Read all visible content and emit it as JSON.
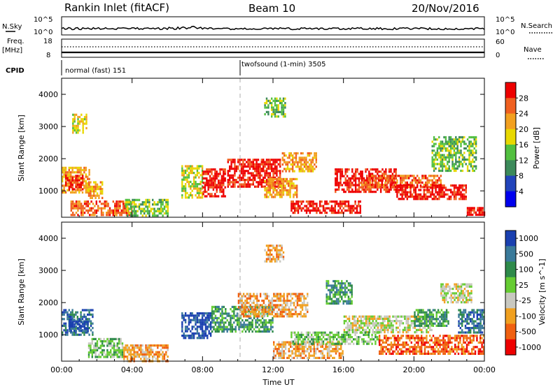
{
  "header": {
    "station": "Rankin Inlet (fitACF)",
    "beam": "Beam 10",
    "date": "20/Nov/2016"
  },
  "top_panels": {
    "nsky_label": "N.Sky",
    "nsearch_label": "N.Search",
    "nsky_ticks": [
      "10^5",
      "10^0"
    ],
    "nsearch_ticks": [
      "10^5",
      "10^0"
    ],
    "freq_label": "Freq.",
    "freq_unit": "[MHz]",
    "freq_ticks": [
      "18",
      "8"
    ],
    "nave_label": "Nave",
    "nave_ticks": [
      "60",
      "0"
    ],
    "cpid_label": "CPID",
    "cpid_segments": [
      {
        "label": "normal (fast) 151",
        "start_hour": 0,
        "end_hour": 10
      },
      {
        "label": "twofsound (1-min) 3505",
        "start_hour": 10,
        "end_hour": 24
      }
    ]
  },
  "chart_data": [
    {
      "type": "heatmap",
      "title": "",
      "xlabel": "",
      "ylabel": "Slant Range [km]",
      "xlim": [
        0,
        24
      ],
      "ylim": [
        180,
        4500
      ],
      "yticks": [
        "1000",
        "2000",
        "3000",
        "4000"
      ],
      "colorbar_label": "Power [dB]",
      "colorbar_ticks": [
        "28",
        "24",
        "20",
        "16",
        "12",
        "8",
        "4"
      ],
      "colorbar_colors": [
        "#ee0000",
        "#f06020",
        "#f2a020",
        "#e8d800",
        "#52c040",
        "#3c8a5a",
        "#2244bb",
        "#0000ee"
      ],
      "regions": [
        {
          "t0": 0.0,
          "t1": 1.6,
          "r0": 950,
          "r1": 1750,
          "level": 2
        },
        {
          "t0": 0.2,
          "t1": 1.2,
          "r0": 1050,
          "r1": 1500,
          "level": 0
        },
        {
          "t0": 1.5,
          "t1": 2.3,
          "r0": 800,
          "r1": 1300,
          "level": 2
        },
        {
          "t0": 0.5,
          "t1": 4.0,
          "r0": 250,
          "r1": 700,
          "level": 1
        },
        {
          "t0": 3.6,
          "t1": 6.0,
          "r0": 200,
          "r1": 750,
          "level": 4
        },
        {
          "t0": 6.8,
          "t1": 8.0,
          "r0": 800,
          "r1": 1800,
          "level": 3
        },
        {
          "t0": 8.0,
          "t1": 9.3,
          "r0": 850,
          "r1": 1700,
          "level": 0
        },
        {
          "t0": 9.4,
          "t1": 12.4,
          "r0": 1100,
          "r1": 2000,
          "level": 0
        },
        {
          "t0": 11.5,
          "t1": 13.4,
          "r0": 800,
          "r1": 1400,
          "level": 2
        },
        {
          "t0": 12.5,
          "t1": 14.5,
          "r0": 1600,
          "r1": 2200,
          "level": 2
        },
        {
          "t0": 13.0,
          "t1": 17.0,
          "r0": 350,
          "r1": 700,
          "level": 0
        },
        {
          "t0": 15.5,
          "t1": 19.0,
          "r0": 1000,
          "r1": 1700,
          "level": 0
        },
        {
          "t0": 17.0,
          "t1": 21.5,
          "r0": 1100,
          "r1": 1500,
          "level": 1
        },
        {
          "t0": 19.0,
          "t1": 23.0,
          "r0": 750,
          "r1": 1200,
          "level": 0
        },
        {
          "t0": 21.0,
          "t1": 23.5,
          "r0": 1600,
          "r1": 2700,
          "level": 4
        },
        {
          "t0": 23.0,
          "t1": 24.0,
          "r0": 250,
          "r1": 500,
          "level": 0
        },
        {
          "t0": 11.5,
          "t1": 12.7,
          "r0": 3300,
          "r1": 3900,
          "level": 4
        },
        {
          "t0": 0.6,
          "t1": 1.4,
          "r0": 2800,
          "r1": 3400,
          "level": 3
        }
      ]
    },
    {
      "type": "heatmap",
      "title": "",
      "xlabel": "Time UT",
      "ylabel": "Slant Range [km]",
      "xlim": [
        0,
        24
      ],
      "ylim": [
        180,
        4500
      ],
      "xticks": [
        "00:00",
        "04:00",
        "08:00",
        "12:00",
        "16:00",
        "20:00",
        "00:00"
      ],
      "yticks": [
        "1000",
        "2000",
        "3000",
        "4000"
      ],
      "colorbar_label": "Velocity [m s^-1]",
      "colorbar_ticks": [
        "1000",
        "500",
        "100",
        "25",
        "-25",
        "-100",
        "-500",
        "-1000"
      ],
      "colorbar_colors": [
        "#1a40b0",
        "#3a7a9a",
        "#2e8a4a",
        "#66cc33",
        "#c8c8c0",
        "#f0a020",
        "#f06010",
        "#ee0000"
      ],
      "regions": [
        {
          "t0": 0.0,
          "t1": 1.8,
          "r0": 1000,
          "r1": 1800,
          "level": 1
        },
        {
          "t0": 0.4,
          "t1": 1.5,
          "r0": 1150,
          "r1": 1500,
          "level": 0
        },
        {
          "t0": 1.5,
          "t1": 3.5,
          "r0": 300,
          "r1": 900,
          "level": 3
        },
        {
          "t0": 3.5,
          "t1": 6.0,
          "r0": 200,
          "r1": 700,
          "level": 5
        },
        {
          "t0": 6.8,
          "t1": 8.5,
          "r0": 900,
          "r1": 1700,
          "level": 0
        },
        {
          "t0": 8.5,
          "t1": 12.0,
          "r0": 1100,
          "r1": 1900,
          "level": 2
        },
        {
          "t0": 10.0,
          "t1": 14.0,
          "r0": 1600,
          "r1": 2300,
          "level": 5
        },
        {
          "t0": 12.0,
          "t1": 16.0,
          "r0": 300,
          "r1": 800,
          "level": 5
        },
        {
          "t0": 16.0,
          "t1": 21.0,
          "r0": 1050,
          "r1": 1600,
          "level": 4
        },
        {
          "t0": 13.0,
          "t1": 18.0,
          "r0": 700,
          "r1": 1100,
          "level": 3
        },
        {
          "t0": 18.0,
          "t1": 24.0,
          "r0": 400,
          "r1": 1000,
          "level": 6
        },
        {
          "t0": 21.5,
          "t1": 23.3,
          "r0": 2000,
          "r1": 2600,
          "level": 4
        },
        {
          "t0": 20.0,
          "t1": 22.0,
          "r0": 1300,
          "r1": 1800,
          "level": 2
        },
        {
          "t0": 22.5,
          "t1": 24.0,
          "r0": 1100,
          "r1": 1800,
          "level": 1
        },
        {
          "t0": 11.5,
          "t1": 12.6,
          "r0": 3300,
          "r1": 3800,
          "level": 5
        },
        {
          "t0": 15.0,
          "t1": 16.5,
          "r0": 2000,
          "r1": 2700,
          "level": 2
        }
      ]
    }
  ],
  "colors": {
    "axis": "#000000",
    "missing": "#ffffff"
  }
}
